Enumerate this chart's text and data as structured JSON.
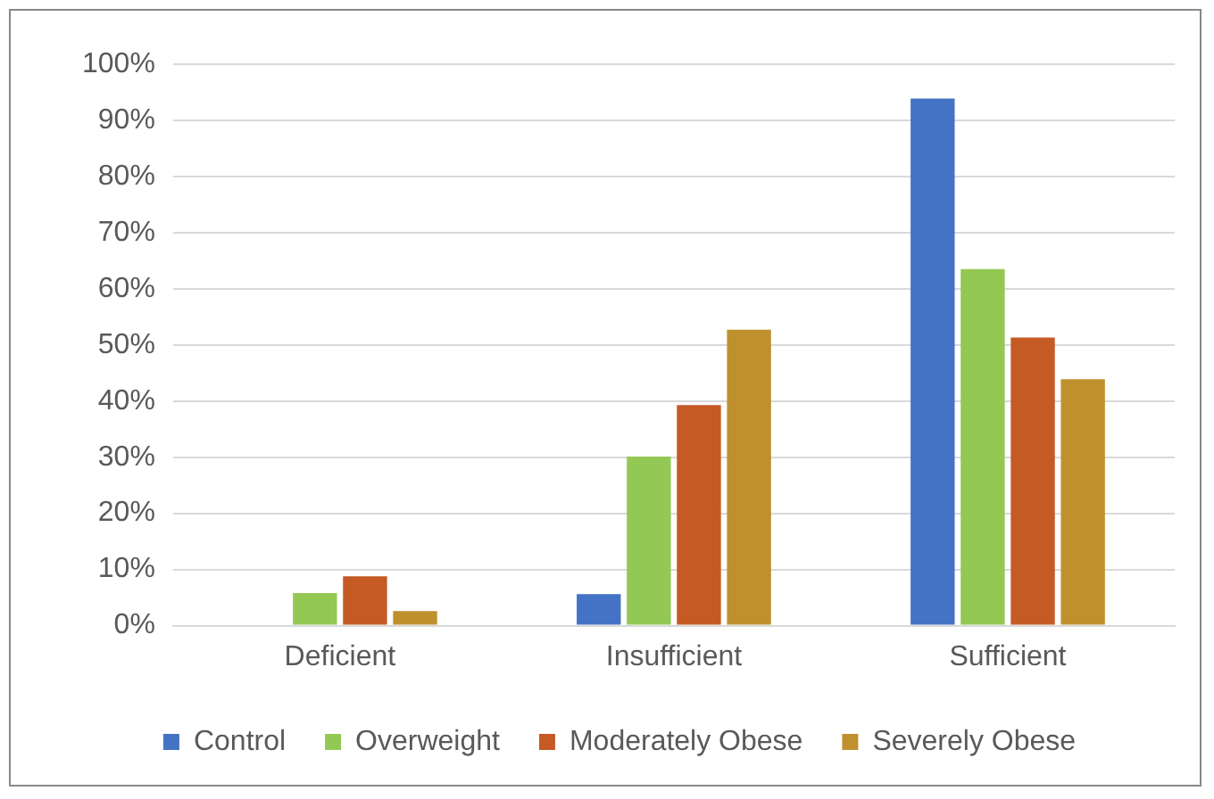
{
  "chart_data": {
    "type": "bar",
    "categories": [
      "Deficient",
      "Insufficient",
      "Sufficient"
    ],
    "series": [
      {
        "name": "Control",
        "color": "#4472c4",
        "values": [
          0,
          5.6,
          93.9
        ]
      },
      {
        "name": "Overweight",
        "color": "#92c853",
        "values": [
          5.8,
          30.1,
          63.5
        ]
      },
      {
        "name": "Moderately Obese",
        "color": "#c55a25",
        "values": [
          8.8,
          39.3,
          51.3
        ]
      },
      {
        "name": "Severely Obese",
        "color": "#bf912e",
        "values": [
          2.6,
          52.7,
          43.9
        ]
      }
    ],
    "ylim": [
      0,
      100
    ],
    "yticks": [
      {
        "value": 0,
        "label": "0%"
      },
      {
        "value": 10,
        "label": "10%"
      },
      {
        "value": 20,
        "label": "20%"
      },
      {
        "value": 30,
        "label": "30%"
      },
      {
        "value": 40,
        "label": "40%"
      },
      {
        "value": 50,
        "label": "50%"
      },
      {
        "value": 60,
        "label": "60%"
      },
      {
        "value": 70,
        "label": "70%"
      },
      {
        "value": 80,
        "label": "80%"
      },
      {
        "value": 90,
        "label": "90%"
      },
      {
        "value": 100,
        "label": "100%"
      }
    ],
    "grid": "y",
    "legend": "bottom"
  }
}
